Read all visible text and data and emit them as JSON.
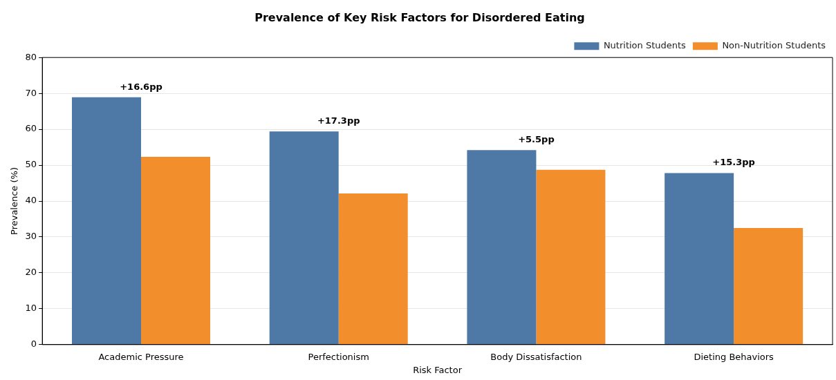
{
  "chart_data": {
    "type": "bar",
    "title": "Prevalence of Key Risk Factors for Disordered Eating",
    "xlabel": "Risk Factor",
    "ylabel": "Prevalence (%)",
    "categories": [
      "Academic Pressure",
      "Perfectionism",
      "Body Dissatisfaction",
      "Dieting Behaviors"
    ],
    "series": [
      {
        "name": "Nutrition Students",
        "color": "#4e79a7",
        "values": [
          68.9,
          59.4,
          54.2,
          47.8
        ]
      },
      {
        "name": "Non-Nutrition Students",
        "color": "#f28e2b",
        "values": [
          52.3,
          42.1,
          48.7,
          32.5
        ]
      }
    ],
    "ylim": [
      0,
      80
    ],
    "yticks": [
      0,
      10,
      20,
      30,
      40,
      50,
      60,
      70,
      80
    ],
    "grid": "y",
    "legend": "top right",
    "annotations": [
      {
        "text": "+16.6pp",
        "x": "Academic Pressure",
        "y": 68.9
      },
      {
        "text": "+17.3pp",
        "x": "Perfectionism",
        "y": 59.4
      },
      {
        "text": "+5.5pp",
        "x": "Body Dissatisfaction",
        "y": 54.2
      },
      {
        "text": "+15.3pp",
        "x": "Dieting Behaviors",
        "y": 47.8
      }
    ]
  }
}
